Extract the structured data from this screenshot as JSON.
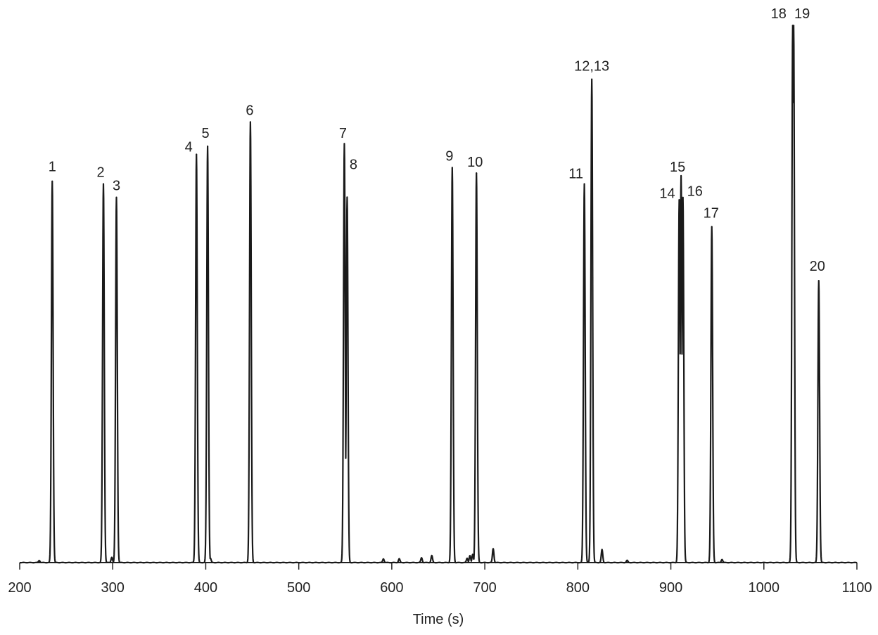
{
  "chart_data": {
    "type": "line",
    "title": "",
    "xlabel": "Time (s)",
    "ylabel": "",
    "xlim": [
      200,
      1100
    ],
    "ylim": [
      0,
      100
    ],
    "x_ticks": [
      200,
      300,
      400,
      500,
      600,
      700,
      800,
      900,
      1000,
      1100
    ],
    "y_axis_visible": false,
    "grid": false,
    "peaks": [
      {
        "label": "1",
        "time": 235,
        "height": 71
      },
      {
        "label": "2",
        "time": 290,
        "height": 70.5
      },
      {
        "label": "3",
        "time": 304,
        "height": 68
      },
      {
        "label": "4",
        "time": 390,
        "height": 76
      },
      {
        "label": "5",
        "time": 402,
        "height": 77.5
      },
      {
        "label": "6",
        "time": 448,
        "height": 82
      },
      {
        "label": "7",
        "time": 549,
        "height": 78
      },
      {
        "label": "8",
        "time": 552,
        "height": 68
      },
      {
        "label": "9",
        "time": 665,
        "height": 73.5
      },
      {
        "label": "10",
        "time": 691,
        "height": 72.5
      },
      {
        "label": "11",
        "time": 807,
        "height": 70.5
      },
      {
        "label": "12,13",
        "time": 815,
        "height": 90
      },
      {
        "label": "14",
        "time": 909,
        "height": 67.5
      },
      {
        "label": "15",
        "time": 911,
        "height": 72
      },
      {
        "label": "16",
        "time": 913,
        "height": 68
      },
      {
        "label": "17",
        "time": 944,
        "height": 62.5
      },
      {
        "label": "18",
        "time": 1031,
        "height": 100
      },
      {
        "label": "19",
        "time": 1032,
        "height": 100
      },
      {
        "label": "20",
        "time": 1059,
        "height": 52.5
      }
    ],
    "minor_peaks": [
      {
        "time": 221,
        "height": 0.4
      },
      {
        "time": 299,
        "height": 1.0
      },
      {
        "time": 405,
        "height": 0.8
      },
      {
        "time": 591,
        "height": 0.7
      },
      {
        "time": 608,
        "height": 0.7
      },
      {
        "time": 632,
        "height": 0.9
      },
      {
        "time": 643,
        "height": 1.3
      },
      {
        "time": 681,
        "height": 0.8
      },
      {
        "time": 684,
        "height": 1.3
      },
      {
        "time": 687,
        "height": 1.5
      },
      {
        "time": 709,
        "height": 2.6
      },
      {
        "time": 826,
        "height": 2.4
      },
      {
        "time": 853,
        "height": 0.4
      },
      {
        "time": 955,
        "height": 0.6
      }
    ]
  }
}
